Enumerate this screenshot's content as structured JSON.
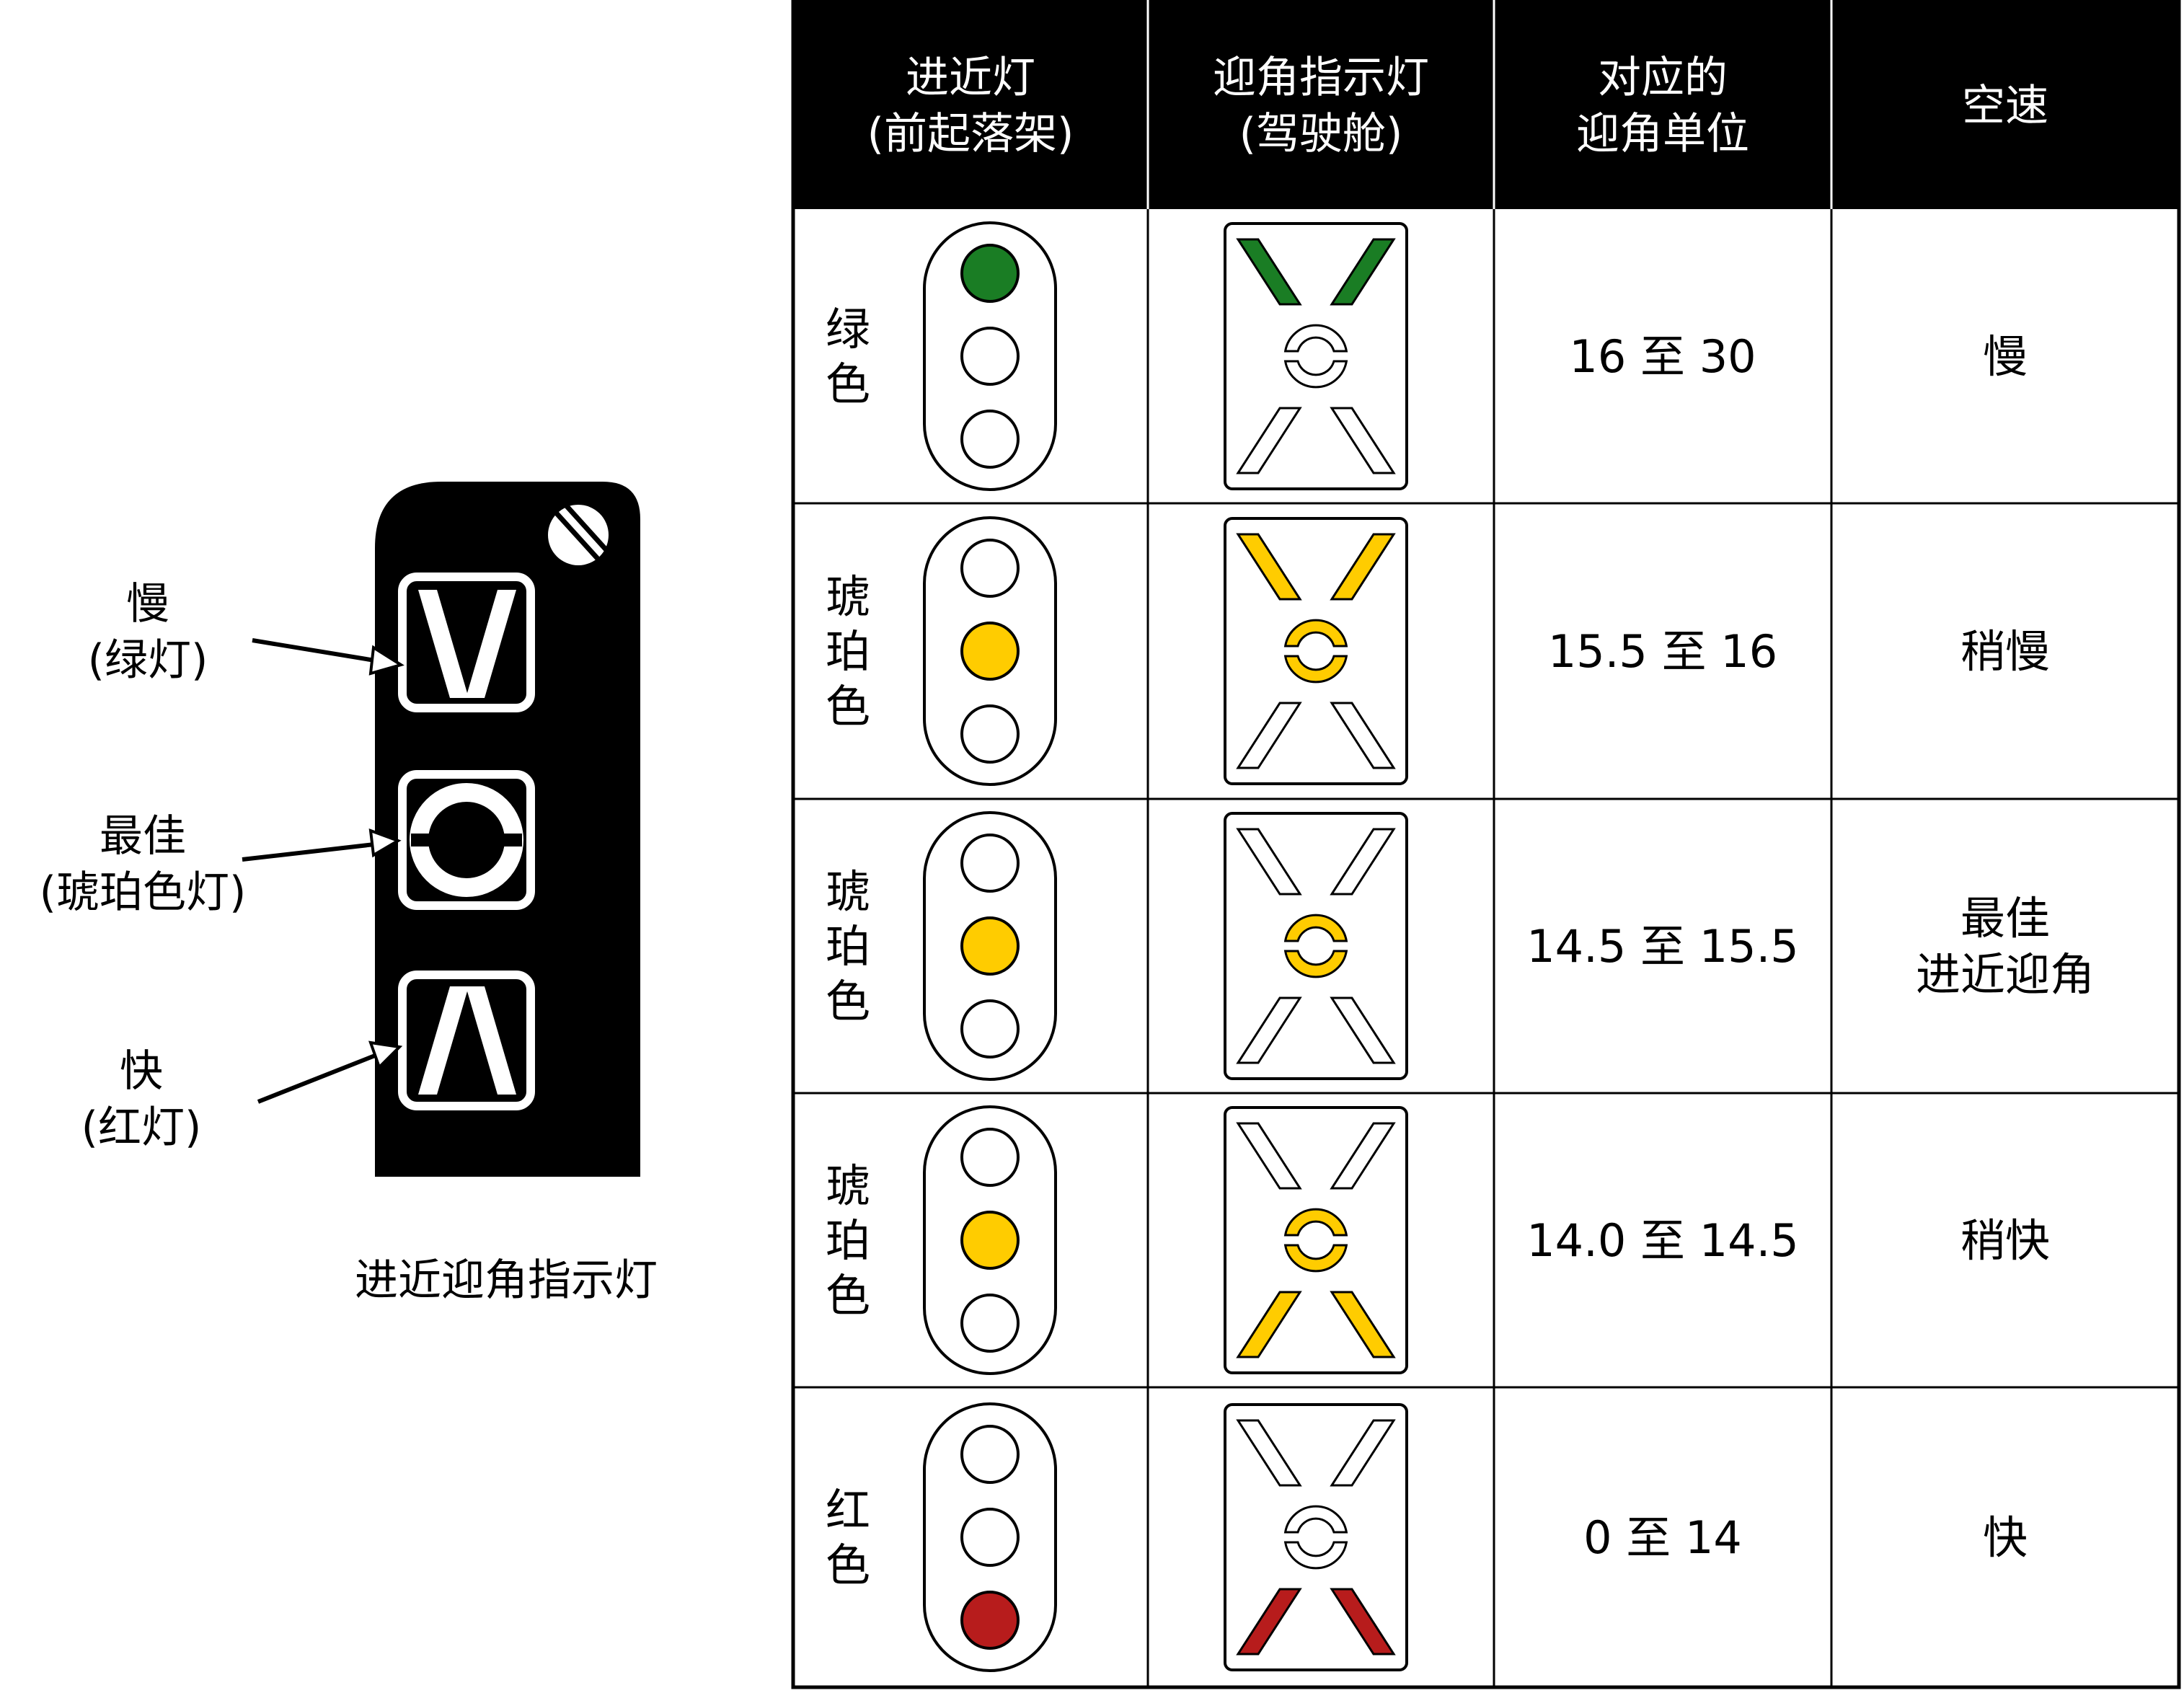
{
  "colors": {
    "green": "#1a7d24",
    "amber": "#ffcc00",
    "red": "#b71c1c",
    "off": "#ffffff",
    "panel": "#000000"
  },
  "indicator": {
    "caption": "进近迎角指示灯",
    "callouts": [
      {
        "main": "慢",
        "sub": "(绿灯)"
      },
      {
        "main": "最佳",
        "sub": "(琥珀色灯)"
      },
      {
        "main": "快",
        "sub": "(红灯)"
      }
    ]
  },
  "table": {
    "headers": [
      [
        "进近灯",
        "(前起落架)"
      ],
      [
        "迎角指示灯",
        "(驾驶舱)"
      ],
      [
        "对应的",
        "迎角单位"
      ],
      [
        "空速"
      ]
    ],
    "rows": [
      {
        "color_label": [
          "绿",
          "色"
        ],
        "approach_lights": [
          "green",
          "off",
          "off"
        ],
        "aoa_upper": "green",
        "aoa_center": "off",
        "aoa_lower": "off",
        "units": "16 至 30",
        "speed": [
          "慢"
        ]
      },
      {
        "color_label": [
          "琥",
          "珀",
          "色"
        ],
        "approach_lights": [
          "off",
          "amber",
          "off"
        ],
        "aoa_upper": "amber",
        "aoa_center": "amber",
        "aoa_lower": "off",
        "units": "15.5 至 16",
        "speed": [
          "稍慢"
        ]
      },
      {
        "color_label": [
          "琥",
          "珀",
          "色"
        ],
        "approach_lights": [
          "off",
          "amber",
          "off"
        ],
        "aoa_upper": "off",
        "aoa_center": "amber",
        "aoa_lower": "off",
        "units": "14.5 至 15.5",
        "speed": [
          "最佳",
          "进近迎角"
        ]
      },
      {
        "color_label": [
          "琥",
          "珀",
          "色"
        ],
        "approach_lights": [
          "off",
          "amber",
          "off"
        ],
        "aoa_upper": "off",
        "aoa_center": "amber",
        "aoa_lower": "amber",
        "units": "14.0 至 14.5",
        "speed": [
          "稍快"
        ]
      },
      {
        "color_label": [
          "红",
          "色"
        ],
        "approach_lights": [
          "off",
          "off",
          "red"
        ],
        "aoa_upper": "off",
        "aoa_center": "off",
        "aoa_lower": "red",
        "units": "0 至 14",
        "speed": [
          "快"
        ]
      }
    ]
  }
}
